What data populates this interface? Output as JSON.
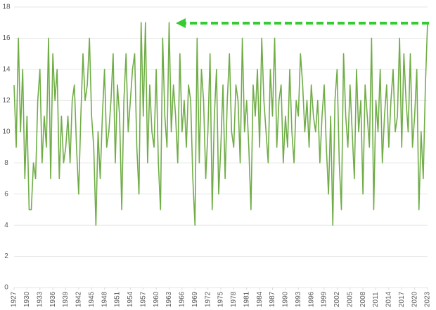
{
  "chart_data": {
    "type": "line",
    "color": "#70ad47",
    "grid": true,
    "xlim": [
      1927,
      2023
    ],
    "ylim": [
      0,
      18
    ],
    "yticks": [
      0,
      2,
      4,
      6,
      8,
      10,
      12,
      14,
      16,
      18
    ],
    "xticks": [
      1927,
      1930,
      1933,
      1936,
      1939,
      1942,
      1945,
      1948,
      1951,
      1954,
      1957,
      1960,
      1963,
      1966,
      1969,
      1972,
      1975,
      1978,
      1981,
      1984,
      1987,
      1990,
      1993,
      1996,
      1999,
      2002,
      2005,
      2008,
      2011,
      2014,
      2017,
      2020,
      2023
    ],
    "x": [
      1927,
      1927.5,
      1928,
      1928.5,
      1929,
      1929.5,
      1930,
      1930.5,
      1931,
      1931.5,
      1932,
      1932.5,
      1933,
      1933.5,
      1934,
      1934.5,
      1935,
      1935.5,
      1936,
      1936.5,
      1937,
      1937.5,
      1938,
      1938.5,
      1939,
      1939.5,
      1940,
      1940.5,
      1941,
      1941.5,
      1942,
      1942.5,
      1943,
      1943.5,
      1944,
      1944.5,
      1945,
      1945.5,
      1946,
      1946.5,
      1947,
      1947.5,
      1948,
      1948.5,
      1949,
      1949.5,
      1950,
      1950.5,
      1951,
      1951.5,
      1952,
      1952.5,
      1953,
      1953.5,
      1954,
      1954.5,
      1955,
      1955.5,
      1956,
      1956.5,
      1957,
      1957.5,
      1958,
      1958.5,
      1959,
      1959.5,
      1960,
      1960.5,
      1961,
      1961.5,
      1962,
      1962.5,
      1963,
      1963.5,
      1964,
      1964.5,
      1965,
      1965.5,
      1966,
      1966.5,
      1967,
      1967.5,
      1968,
      1968.5,
      1969,
      1969.5,
      1970,
      1970.5,
      1971,
      1971.5,
      1972,
      1972.5,
      1973,
      1973.5,
      1974,
      1974.5,
      1975,
      1975.5,
      1976,
      1976.5,
      1977,
      1977.5,
      1978,
      1978.5,
      1979,
      1979.5,
      1980,
      1980.5,
      1981,
      1981.5,
      1982,
      1982.5,
      1983,
      1983.5,
      1984,
      1984.5,
      1985,
      1985.5,
      1986,
      1986.5,
      1987,
      1987.5,
      1988,
      1988.5,
      1989,
      1989.5,
      1990,
      1990.5,
      1991,
      1991.5,
      1992,
      1992.5,
      1993,
      1993.5,
      1994,
      1994.5,
      1995,
      1995.5,
      1996,
      1996.5,
      1997,
      1997.5,
      1998,
      1998.5,
      1999,
      1999.5,
      2000,
      2000.5,
      2001,
      2001.5,
      2002,
      2002.5,
      2003,
      2003.5,
      2004,
      2004.5,
      2005,
      2005.5,
      2006,
      2006.5,
      2007,
      2007.5,
      2008,
      2008.5,
      2009,
      2009.5,
      2010,
      2010.5,
      2011,
      2011.5,
      2012,
      2012.5,
      2013,
      2013.5,
      2014,
      2014.5,
      2015,
      2015.5,
      2016,
      2016.5,
      2017,
      2017.5,
      2018,
      2018.5,
      2019,
      2019.5,
      2020,
      2020.5,
      2021,
      2021.5,
      2022,
      2022.5,
      2023
    ],
    "values": [
      13,
      9,
      16,
      10,
      14,
      7,
      11,
      5,
      5,
      8,
      7,
      12,
      14,
      8,
      11,
      9,
      16,
      7,
      15,
      12,
      14,
      7,
      11,
      8,
      9,
      11,
      8,
      12,
      13,
      9,
      6,
      11,
      15,
      12,
      13,
      16,
      11,
      9,
      4,
      10,
      7,
      11,
      14,
      9,
      10,
      12,
      15,
      8,
      13,
      11,
      5,
      12,
      15,
      10,
      12,
      14,
      15,
      9,
      6,
      17,
      11,
      17,
      8,
      13,
      10,
      9,
      14,
      8,
      5,
      16,
      11,
      9,
      17,
      10,
      13,
      11,
      8,
      15,
      10,
      12,
      9,
      13,
      12,
      7,
      4,
      16,
      8,
      14,
      12,
      7,
      10,
      15,
      5,
      11,
      14,
      6,
      9,
      13,
      7,
      12,
      15,
      10,
      9,
      13,
      12,
      8,
      16,
      10,
      12,
      9,
      5,
      13,
      11,
      14,
      9,
      16,
      12,
      10,
      8,
      14,
      11,
      16,
      9,
      12,
      13,
      8,
      11,
      9,
      14,
      10,
      8,
      12,
      11,
      15,
      13,
      10,
      12,
      9,
      13,
      11,
      10,
      12,
      8,
      11,
      13,
      9,
      6,
      11,
      4,
      12,
      14,
      8,
      5,
      15,
      11,
      9,
      13,
      10,
      7,
      14,
      10,
      12,
      6,
      13,
      11,
      9,
      16,
      5,
      12,
      10,
      14,
      8,
      11,
      13,
      9,
      12,
      14,
      10,
      11,
      16,
      9,
      15,
      12,
      10,
      15,
      9,
      11,
      14,
      5,
      10,
      7,
      13,
      17
    ]
  }
}
